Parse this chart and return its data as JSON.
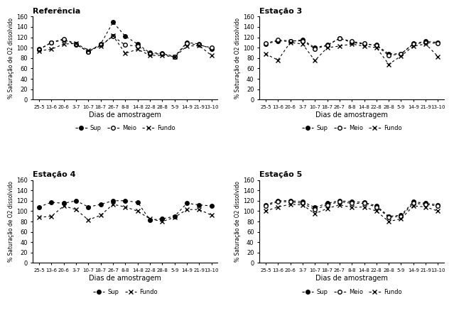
{
  "x_labels": [
    "25-5",
    "13-6",
    "20-6",
    "3-7",
    "10-7",
    "18-7",
    "26-7",
    "8-8",
    "14-8",
    "22-8",
    "28-8",
    "5-9",
    "14-9",
    "21-9",
    "13-10"
  ],
  "referencia": {
    "title": "Referência",
    "sup": [
      97,
      110,
      115,
      106,
      92,
      107,
      149,
      122,
      107,
      90,
      89,
      83,
      110,
      107,
      97
    ],
    "meio": [
      96,
      110,
      117,
      107,
      92,
      105,
      122,
      105,
      103,
      88,
      88,
      82,
      108,
      105,
      100
    ],
    "fundo": [
      94,
      97,
      107,
      108,
      95,
      103,
      123,
      89,
      97,
      85,
      85,
      82,
      103,
      104,
      85
    ]
  },
  "estacao3": {
    "title": "Estação 3",
    "sup": [
      107,
      113,
      112,
      115,
      100,
      105,
      118,
      110,
      107,
      105,
      88,
      88,
      108,
      112,
      110
    ],
    "meio": [
      108,
      115,
      113,
      113,
      98,
      104,
      118,
      112,
      108,
      104,
      85,
      88,
      107,
      110,
      108
    ],
    "fundo": [
      88,
      76,
      110,
      107,
      75,
      100,
      103,
      107,
      103,
      100,
      68,
      84,
      103,
      107,
      83
    ]
  },
  "estacao4": {
    "title": "Estação 4",
    "sup": [
      108,
      117,
      115,
      120,
      108,
      113,
      120,
      120,
      117,
      83,
      85,
      90,
      115,
      112,
      110
    ],
    "fundo": [
      88,
      90,
      110,
      103,
      83,
      92,
      113,
      108,
      100,
      85,
      80,
      88,
      103,
      103,
      92
    ]
  },
  "estacao5": {
    "title": "Estação 5",
    "sup": [
      112,
      120,
      120,
      118,
      107,
      115,
      120,
      118,
      117,
      110,
      90,
      92,
      118,
      115,
      112
    ],
    "meio": [
      110,
      118,
      118,
      115,
      103,
      112,
      118,
      115,
      115,
      108,
      88,
      90,
      115,
      113,
      110
    ],
    "fundo": [
      100,
      108,
      113,
      112,
      95,
      105,
      112,
      107,
      108,
      100,
      80,
      85,
      110,
      108,
      100
    ]
  },
  "ylabel": "% Saturação de O2 dissolvido",
  "xlabel": "Dias de amostragem",
  "ylim": [
    0,
    160
  ],
  "yticks": [
    0,
    20,
    40,
    60,
    80,
    100,
    120,
    140,
    160
  ]
}
